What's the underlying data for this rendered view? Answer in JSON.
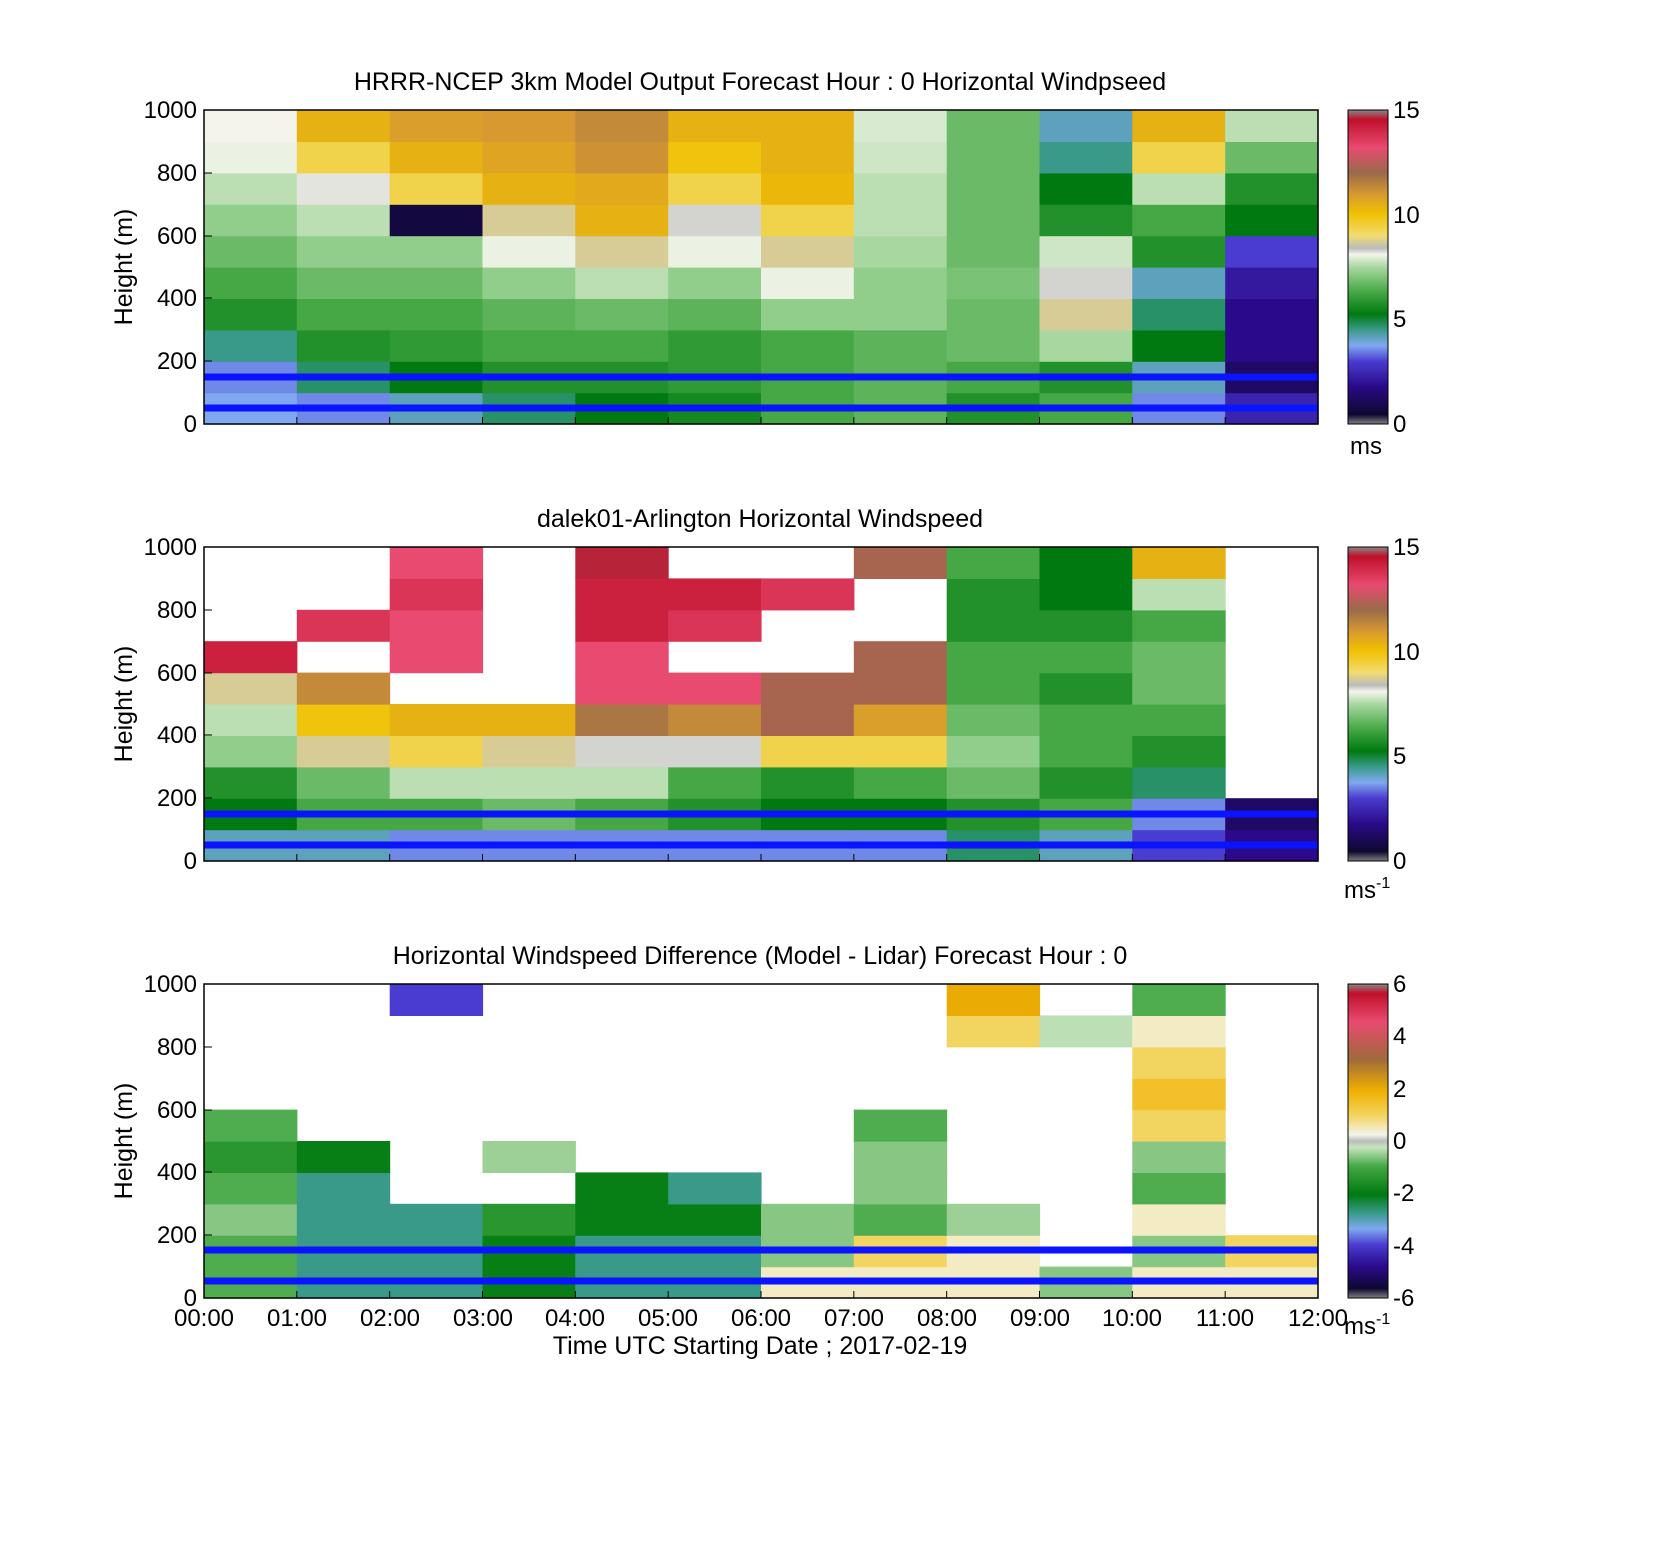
{
  "figure": {
    "xlabel": "Time UTC  Starting Date ; 2017-02-19",
    "x_ticks": [
      "00:00",
      "01:00",
      "02:00",
      "03:00",
      "04:00",
      "05:00",
      "06:00",
      "07:00",
      "08:00",
      "09:00",
      "10:00",
      "11:00",
      "12:00"
    ]
  },
  "panels": [
    {
      "title": "HRRR-NCEP 3km Model Output   Forecast Hour : 0 Horizontal Windpseed",
      "ylabel": "Height (m)",
      "y_ticks": [
        "0",
        "200",
        "400",
        "600",
        "800",
        "1000"
      ],
      "colorbar": {
        "ticks": [
          "0",
          "5",
          "10",
          "15"
        ],
        "unit": "ms",
        "unit_exp": ""
      }
    },
    {
      "title": "dalek01-Arlington  Horizontal Windspeed",
      "ylabel": "Height (m)",
      "y_ticks": [
        "0",
        "200",
        "400",
        "600",
        "800",
        "1000"
      ],
      "colorbar": {
        "ticks": [
          "0",
          "5",
          "10",
          "15"
        ],
        "unit": "ms",
        "unit_exp": "-1"
      }
    },
    {
      "title": "Horizontal Windspeed Difference (Model - Lidar) Forecast Hour : 0",
      "ylabel": "Height (m)",
      "y_ticks": [
        "0",
        "200",
        "400",
        "600",
        "800",
        "1000"
      ],
      "colorbar": {
        "ticks": [
          "-6",
          "-4",
          "-2",
          "0",
          "2",
          "4",
          "6"
        ],
        "unit": "ms",
        "unit_exp": "-1"
      }
    }
  ],
  "chart_data": [
    {
      "type": "heatmap",
      "title": "HRRR-NCEP 3km Model Output   Forecast Hour : 0 Horizontal Windpseed",
      "xlabel": "",
      "ylabel": "Height (m)",
      "xlim": [
        0,
        12
      ],
      "ylim": [
        0,
        1000
      ],
      "clim": [
        0,
        15
      ],
      "colorbar_unit": "ms",
      "x_hours": [
        0,
        1,
        2,
        3,
        4,
        5,
        6,
        7,
        8,
        9,
        10,
        11
      ],
      "y_levels": [
        0,
        100,
        200,
        300,
        400,
        500,
        600,
        700,
        800,
        900
      ],
      "values": [
        [
          3.2,
          3.0,
          3.5,
          4.0,
          4.5,
          4.8,
          5.5,
          5.8,
          5.0,
          5.5,
          3.0,
          2.0
        ],
        [
          3.0,
          4.0,
          4.5,
          5.0,
          5.0,
          5.2,
          5.5,
          5.8,
          5.5,
          5.0,
          3.5,
          1.0
        ],
        [
          3.8,
          5.0,
          5.2,
          5.5,
          5.5,
          5.2,
          5.5,
          5.8,
          6.0,
          6.8,
          4.5,
          1.5
        ],
        [
          5.0,
          5.5,
          5.5,
          5.8,
          6.0,
          5.8,
          6.5,
          6.5,
          6.0,
          8.5,
          4.0,
          1.5
        ],
        [
          5.5,
          6.0,
          6.0,
          6.5,
          7.0,
          6.5,
          7.5,
          6.5,
          6.2,
          8.0,
          3.5,
          1.8
        ],
        [
          6.0,
          6.5,
          6.5,
          7.5,
          8.5,
          7.5,
          8.5,
          6.8,
          6.0,
          7.2,
          5.0,
          2.5
        ],
        [
          6.5,
          7.0,
          0.5,
          8.5,
          10.0,
          8.0,
          9.0,
          7.0,
          6.0,
          5.0,
          5.5,
          4.5
        ],
        [
          7.0,
          7.8,
          9.0,
          10.0,
          10.2,
          9.0,
          9.8,
          7.0,
          6.0,
          4.5,
          7.0,
          5.0
        ],
        [
          7.5,
          9.0,
          10.0,
          10.3,
          10.8,
          9.5,
          10.0,
          7.2,
          6.0,
          3.8,
          9.0,
          6.0
        ],
        [
          7.6,
          10.0,
          10.5,
          10.6,
          11.0,
          10.0,
          10.0,
          7.3,
          6.0,
          3.5,
          10.0,
          7.0
        ]
      ],
      "overlay_lines_m": [
        150,
        50
      ]
    },
    {
      "type": "heatmap",
      "title": "dalek01-Arlington  Horizontal Windspeed",
      "xlabel": "",
      "ylabel": "Height (m)",
      "xlim": [
        0,
        12
      ],
      "ylim": [
        0,
        1000
      ],
      "clim": [
        0,
        15
      ],
      "colorbar_unit": "ms-1",
      "x_hours": [
        0,
        1,
        2,
        3,
        4,
        5,
        6,
        7,
        8,
        9,
        10,
        11
      ],
      "y_levels": [
        0,
        100,
        200,
        300,
        400,
        500,
        600,
        700,
        800,
        900
      ],
      "values": [
        [
          3.5,
          3.5,
          3.0,
          3.0,
          3.0,
          3.0,
          3.0,
          3.0,
          4.0,
          3.5,
          2.5,
          1.5
        ],
        [
          4.5,
          5.5,
          5.5,
          6.0,
          5.5,
          5.0,
          4.5,
          4.5,
          5.0,
          5.5,
          3.0,
          1.0
        ],
        [
          5.0,
          6.0,
          7.0,
          7.0,
          7.0,
          5.5,
          5.0,
          5.5,
          6.0,
          5.0,
          4.0,
          null
        ],
        [
          6.5,
          8.5,
          9.0,
          8.5,
          8.0,
          8.0,
          9.0,
          9.0,
          6.5,
          5.5,
          5.0,
          null
        ],
        [
          7.0,
          9.5,
          10.0,
          10.0,
          11.5,
          11.0,
          12.0,
          10.5,
          6.0,
          5.5,
          5.5,
          null
        ],
        [
          8.5,
          11.0,
          null,
          null,
          13.0,
          13.0,
          12.0,
          12.0,
          5.5,
          5.0,
          6.0,
          null
        ],
        [
          14.0,
          null,
          13.0,
          null,
          13.0,
          null,
          null,
          12.0,
          5.5,
          5.5,
          6.0,
          null
        ],
        [
          null,
          13.5,
          13.0,
          null,
          14.0,
          13.5,
          null,
          null,
          5.0,
          5.0,
          5.5,
          null
        ],
        [
          null,
          null,
          13.5,
          null,
          14.0,
          14.0,
          13.5,
          null,
          5.0,
          4.5,
          7.0,
          null
        ],
        [
          null,
          null,
          13.0,
          null,
          14.5,
          null,
          null,
          12.0,
          5.5,
          4.5,
          10.0,
          null
        ]
      ],
      "overlay_lines_m": [
        150,
        50
      ]
    },
    {
      "type": "heatmap",
      "title": "Horizontal Windspeed Difference (Model - Lidar) Forecast Hour : 0",
      "xlabel": "Time UTC  Starting Date ; 2017-02-19",
      "ylabel": "Height (m)",
      "xlim": [
        0,
        12
      ],
      "ylim": [
        0,
        1000
      ],
      "clim": [
        -6,
        6
      ],
      "colorbar_unit": "ms-1",
      "x_hours": [
        0,
        1,
        2,
        3,
        4,
        5,
        6,
        7,
        8,
        9,
        10,
        11
      ],
      "y_levels": [
        0,
        100,
        200,
        300,
        400,
        500,
        600,
        700,
        800,
        900
      ],
      "values": [
        [
          -1.5,
          -3.0,
          -3.0,
          -2.5,
          -3.0,
          -3.0,
          0.5,
          0.5,
          0.5,
          -1.0,
          0.5,
          0.5
        ],
        [
          -1.5,
          -3.0,
          -3.0,
          -2.5,
          -3.0,
          -3.0,
          -1.0,
          1.0,
          0.5,
          null,
          -1.0,
          1.0
        ],
        [
          -1.0,
          -3.0,
          -3.0,
          -2.0,
          -2.5,
          -2.5,
          -1.0,
          -1.5,
          -0.8,
          null,
          0.5,
          null
        ],
        [
          -1.5,
          -3.0,
          null,
          null,
          -2.5,
          -3.0,
          null,
          -1.0,
          null,
          null,
          -1.5,
          null
        ],
        [
          -2.0,
          -2.5,
          null,
          -0.8,
          null,
          null,
          null,
          -1.0,
          null,
          null,
          -1.0,
          null
        ],
        [
          -1.5,
          null,
          null,
          null,
          null,
          null,
          null,
          -1.5,
          null,
          null,
          1.0,
          null
        ],
        [
          null,
          null,
          null,
          null,
          null,
          null,
          null,
          null,
          null,
          null,
          1.5,
          null
        ],
        [
          null,
          null,
          null,
          null,
          null,
          null,
          null,
          null,
          null,
          null,
          1.0,
          null
        ],
        [
          null,
          null,
          null,
          null,
          null,
          null,
          null,
          null,
          1.0,
          -0.5,
          0.5,
          null
        ],
        [
          null,
          null,
          -4.0,
          null,
          null,
          null,
          null,
          null,
          2.0,
          null,
          -1.5,
          null
        ]
      ],
      "overlay_lines_m": [
        150,
        50
      ]
    }
  ]
}
